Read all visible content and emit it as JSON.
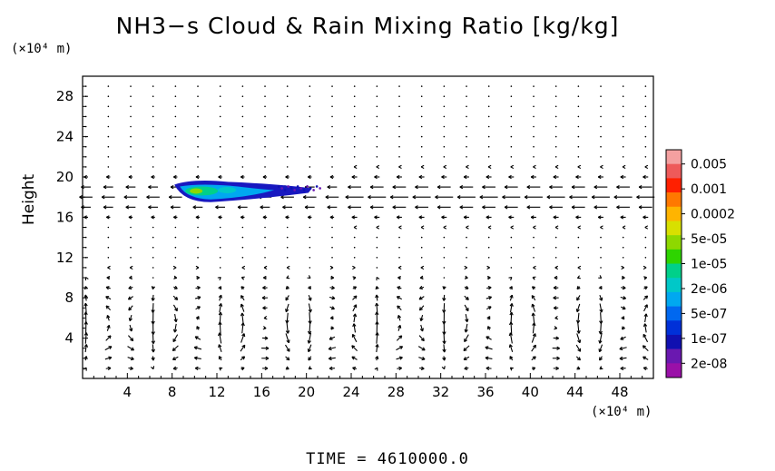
{
  "title": "NH3−s Cloud & Rain Mixing Ratio [kg/kg]",
  "y_unit": "(×10⁴ m)",
  "x_unit": "(×10⁴ m)",
  "time_label": "TIME  =  4610000.0",
  "chart_data": {
    "type": "heatmap",
    "title": "NH3−s Cloud & Rain Mixing Ratio [kg/kg]",
    "xlabel": "",
    "ylabel": "Height",
    "x_ticks": [
      4,
      8,
      12,
      16,
      20,
      24,
      28,
      32,
      36,
      40,
      44,
      48
    ],
    "y_ticks": [
      4,
      8,
      12,
      16,
      20,
      24,
      28
    ],
    "xlim": [
      0,
      51
    ],
    "ylim": [
      0,
      30
    ],
    "colorbar": {
      "labels": [
        "0.005",
        "0.001",
        "0.0002",
        "5e-05",
        "1e-05",
        "2e-06",
        "5e-07",
        "1e-07",
        "2e-08"
      ],
      "colors": [
        "#f4a0a0",
        "#ee5a5a",
        "#ff2000",
        "#ff7800",
        "#ffb400",
        "#d8e000",
        "#8ed800",
        "#2ed400",
        "#00d08a",
        "#00c8c8",
        "#00a8f0",
        "#0068f0",
        "#0030d8",
        "#1010b0",
        "#6a18b0",
        "#9a10a8"
      ]
    },
    "cloud_region": {
      "x_range": [
        8.2,
        20.5
      ],
      "y_range": [
        17.5,
        19.6
      ]
    },
    "vector_field": "wind vectors shown as arrows across the domain"
  }
}
